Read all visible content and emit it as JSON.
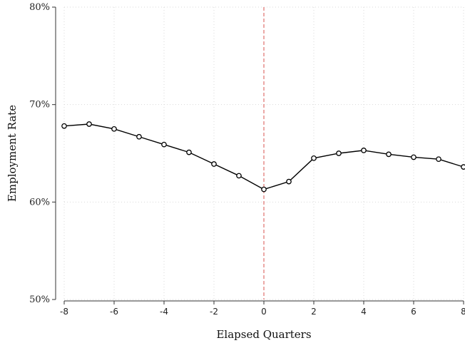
{
  "chart_data": {
    "type": "line",
    "xlabel": "Elapsed Quarters",
    "ylabel": "Employment Rate",
    "xlim": [
      -8,
      8
    ],
    "ylim": [
      50,
      80
    ],
    "x_ticks": [
      -8,
      -6,
      -4,
      -2,
      0,
      2,
      4,
      6,
      8
    ],
    "x_tick_labels": [
      "-8",
      "-6",
      "-4",
      "-2",
      "0",
      "2",
      "4",
      "6",
      "8"
    ],
    "y_ticks": [
      50,
      60,
      70,
      80
    ],
    "y_tick_labels": [
      "50%",
      "60%",
      "70%",
      "80%"
    ],
    "grid": true,
    "reference_line_x": 0,
    "reference_line_color": "#d9534f",
    "series": [
      {
        "x": [
          -8,
          -7,
          -6,
          -5,
          -4,
          -3,
          -2,
          -1,
          0,
          1,
          2,
          3,
          4,
          5,
          6,
          7,
          8
        ],
        "values": [
          67.8,
          68.0,
          67.5,
          66.7,
          65.9,
          65.1,
          63.9,
          62.7,
          61.3,
          62.1,
          64.5,
          65.0,
          65.3,
          64.9,
          64.6,
          64.4,
          63.6
        ],
        "color": "#000000",
        "marker": "hollow-circle"
      }
    ]
  }
}
